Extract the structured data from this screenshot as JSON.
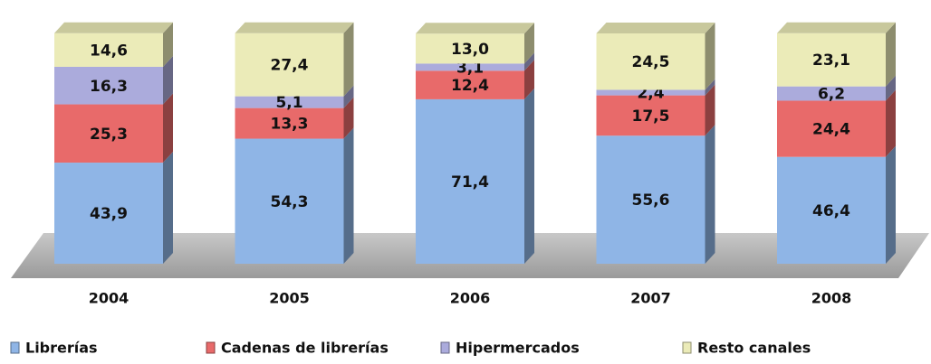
{
  "chart_data": {
    "type": "stacked_bar",
    "categories": [
      "2004",
      "2005",
      "2006",
      "2007",
      "2008"
    ],
    "ylim": [
      0,
      100
    ],
    "series": [
      {
        "name": "Librerías",
        "color": "#8fb5e6",
        "values": [
          43.9,
          54.3,
          71.4,
          55.6,
          46.4
        ],
        "value_labels": [
          "43,9",
          "54,3",
          "71,4",
          "55,6",
          "46,4"
        ]
      },
      {
        "name": "Cadenas de librerías",
        "color": "#e86a6a",
        "values": [
          25.3,
          13.3,
          12.4,
          17.5,
          24.4
        ],
        "value_labels": [
          "25,3",
          "13,3",
          "12,4",
          "17,5",
          "24,4"
        ]
      },
      {
        "name": "Hipermercados",
        "color": "#ababdc",
        "values": [
          16.3,
          5.1,
          3.1,
          2.4,
          6.2
        ],
        "value_labels": [
          "16,3",
          "5,1",
          "3,1",
          "2,4",
          "6,2"
        ]
      },
      {
        "name": "Resto canales",
        "color": "#ebebb8",
        "values": [
          14.6,
          27.4,
          13.0,
          24.5,
          23.1
        ],
        "value_labels": [
          "14,6",
          "27,4",
          "13,0",
          "24,5",
          "23,1"
        ]
      }
    ]
  }
}
